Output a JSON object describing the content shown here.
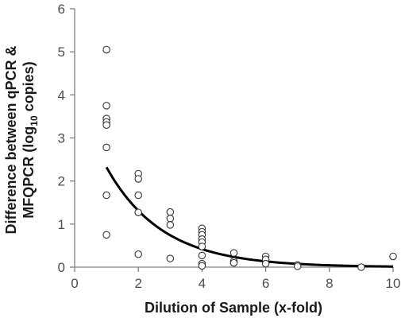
{
  "chart_data": {
    "type": "scatter",
    "title": "",
    "xlabel": "Dilution of Sample (x-fold)",
    "ylabel_line1": "Difference between qPCR &",
    "ylabel_line2_pre": "MFQPCR (log",
    "ylabel_line2_sub": "10",
    "ylabel_line2_post": " copies)",
    "xlim": [
      0,
      10
    ],
    "ylim": [
      0,
      6
    ],
    "x_ticks": [
      0,
      2,
      4,
      6,
      8,
      10
    ],
    "y_ticks": [
      0,
      1,
      2,
      3,
      4,
      5,
      6
    ],
    "grid": false,
    "legend": "none",
    "marker": "open-circle",
    "colors": {
      "axis": "#808080",
      "marker": "#333333",
      "curve": "#000000"
    },
    "points": [
      {
        "x": 1,
        "y": 5.05
      },
      {
        "x": 1,
        "y": 3.75
      },
      {
        "x": 1,
        "y": 3.45
      },
      {
        "x": 1,
        "y": 3.37
      },
      {
        "x": 1,
        "y": 3.3
      },
      {
        "x": 1,
        "y": 2.78
      },
      {
        "x": 1,
        "y": 1.67
      },
      {
        "x": 1,
        "y": 0.75
      },
      {
        "x": 2,
        "y": 2.17
      },
      {
        "x": 2,
        "y": 2.05
      },
      {
        "x": 2,
        "y": 1.67
      },
      {
        "x": 2,
        "y": 1.27
      },
      {
        "x": 2,
        "y": 0.3
      },
      {
        "x": 3,
        "y": 1.28
      },
      {
        "x": 3,
        "y": 1.13
      },
      {
        "x": 3,
        "y": 0.98
      },
      {
        "x": 3,
        "y": 0.2
      },
      {
        "x": 4,
        "y": 0.9
      },
      {
        "x": 4,
        "y": 0.82
      },
      {
        "x": 4,
        "y": 0.75
      },
      {
        "x": 4,
        "y": 0.65
      },
      {
        "x": 4,
        "y": 0.58
      },
      {
        "x": 4,
        "y": 0.48
      },
      {
        "x": 4,
        "y": 0.27
      },
      {
        "x": 4,
        "y": 0.08
      },
      {
        "x": 4,
        "y": 0.03
      },
      {
        "x": 5,
        "y": 0.33
      },
      {
        "x": 5,
        "y": 0.14
      },
      {
        "x": 5,
        "y": 0.1
      },
      {
        "x": 6,
        "y": 0.25
      },
      {
        "x": 6,
        "y": 0.18
      },
      {
        "x": 6,
        "y": 0.08
      },
      {
        "x": 7,
        "y": 0.05
      },
      {
        "x": 7,
        "y": 0.02
      },
      {
        "x": 9,
        "y": 0.0
      },
      {
        "x": 10,
        "y": 0.25
      }
    ],
    "fit_curve": {
      "type": "exponential",
      "equation": "y = a * exp(b * x)",
      "a": 4.1,
      "b": -0.57,
      "x_range": [
        1,
        10
      ]
    }
  }
}
